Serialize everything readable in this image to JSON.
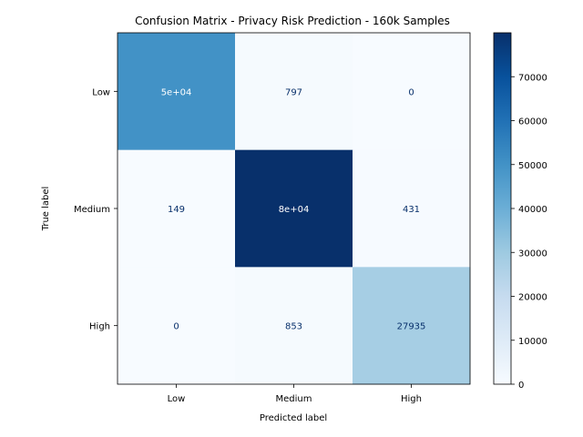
{
  "chart_data": {
    "type": "heatmap",
    "title": "Confusion Matrix - Privacy Risk Prediction - 160k Samples",
    "xlabel": "Predicted label",
    "ylabel": "True label",
    "x_categories": [
      "Low",
      "Medium",
      "High"
    ],
    "y_categories": [
      "Low",
      "Medium",
      "High"
    ],
    "values": [
      [
        50000,
        797,
        0
      ],
      [
        149,
        80000,
        431
      ],
      [
        0,
        853,
        27935
      ]
    ],
    "cell_labels": [
      [
        "5e+04",
        "797",
        "0"
      ],
      [
        "149",
        "8e+04",
        "431"
      ],
      [
        "0",
        "853",
        "27935"
      ]
    ],
    "colormap": "Blues",
    "color_range": [
      0,
      80000
    ],
    "colorbar_ticks": [
      0,
      10000,
      20000,
      30000,
      40000,
      50000,
      60000,
      70000
    ],
    "colorbar_tick_labels": [
      "0",
      "10000",
      "20000",
      "30000",
      "40000",
      "50000",
      "60000",
      "70000"
    ],
    "text_color_light": "#ffffff",
    "text_color_dark": "#08306b"
  }
}
